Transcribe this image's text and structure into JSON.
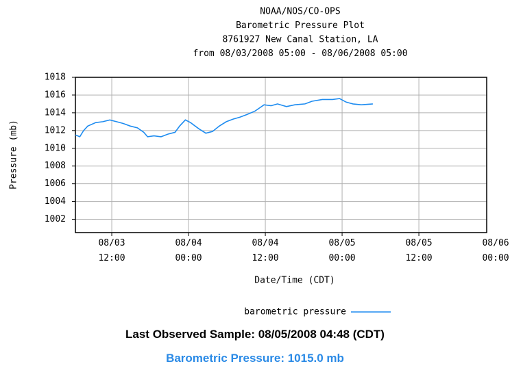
{
  "chart_data": {
    "type": "line",
    "title": [
      "NOAA/NOS/CO-OPS",
      "Barometric Pressure Plot",
      "8761927 New Canal Station, LA",
      "from 08/03/2008 05:00 - 08/06/2008 05:00"
    ],
    "x_label": "Date/Time (CDT)",
    "y_label": "Pressure (mb)",
    "xlim": [
      "08/03 06:19",
      "08/05 22:36"
    ],
    "xticks": [
      "08/03 12:00",
      "08/04 00:00",
      "08/04 12:00",
      "08/05 00:00",
      "08/05 12:00",
      "08/06 00:00"
    ],
    "ylim": [
      1000.5,
      1018
    ],
    "yticks": [
      1002,
      1004,
      1006,
      1008,
      1010,
      1012,
      1014,
      1016,
      1018
    ],
    "grid": true,
    "series": [
      {
        "name": "barometric pressure",
        "color": "#1e8cf0",
        "x": [
          "08/03 06:19",
          "08/03 07:00",
          "08/03 07:36",
          "08/03 08:15",
          "08/03 09:30",
          "08/03 10:36",
          "08/03 11:42",
          "08/03 12:45",
          "08/03 13:48",
          "08/03 14:54",
          "08/03 16:00",
          "08/03 17:00",
          "08/03 17:36",
          "08/03 18:36",
          "08/03 19:42",
          "08/03 20:48",
          "08/03 21:54",
          "08/03 22:36",
          "08/03 23:30",
          "08/04 00:18",
          "08/04 01:36",
          "08/04 02:42",
          "08/04 03:45",
          "08/04 04:48",
          "08/04 05:54",
          "08/04 07:00",
          "08/04 08:00",
          "08/04 09:06",
          "08/04 10:24",
          "08/04 11:48",
          "08/04 12:54",
          "08/04 13:54",
          "08/04 15:18",
          "08/04 16:36",
          "08/04 18:12",
          "08/04 19:18",
          "08/04 20:54",
          "08/04 22:30",
          "08/04 23:36",
          "08/05 00:39",
          "08/05 01:42",
          "08/05 03:00",
          "08/05 04:48"
        ],
        "values": [
          1011.5,
          1011.3,
          1012.0,
          1012.5,
          1012.9,
          1013.0,
          1013.2,
          1013.0,
          1012.8,
          1012.5,
          1012.3,
          1011.8,
          1011.3,
          1011.4,
          1011.3,
          1011.6,
          1011.8,
          1012.5,
          1013.2,
          1012.9,
          1012.2,
          1011.7,
          1011.9,
          1012.5,
          1013.0,
          1013.3,
          1013.5,
          1013.8,
          1014.2,
          1014.9,
          1014.8,
          1015.0,
          1014.7,
          1014.9,
          1015.0,
          1015.3,
          1015.5,
          1015.5,
          1015.6,
          1015.2,
          1015.0,
          1014.9,
          1015.0
        ]
      }
    ],
    "legend": "bottom",
    "annotations": [
      "Last Observed Sample: 08/05/2008 04:48 (CDT)",
      "Barometric Pressure: 1015.0 mb"
    ]
  }
}
